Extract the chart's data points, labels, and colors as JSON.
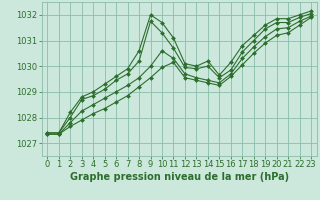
{
  "background_color": "#cce8dc",
  "grid_color": "#8bbcaa",
  "line_color": "#2d6e2d",
  "marker_color": "#2d6e2d",
  "xlabel": "Graphe pression niveau de la mer (hPa)",
  "xlabel_fontsize": 7,
  "tick_fontsize": 6,
  "ylim": [
    1026.5,
    1032.5
  ],
  "xlim": [
    -0.5,
    23.5
  ],
  "yticks": [
    1027,
    1028,
    1029,
    1030,
    1031,
    1032
  ],
  "xticks": [
    0,
    1,
    2,
    3,
    4,
    5,
    6,
    7,
    8,
    9,
    10,
    11,
    12,
    13,
    14,
    15,
    16,
    17,
    18,
    19,
    20,
    21,
    22,
    23
  ],
  "series": [
    [
      1027.4,
      1027.4,
      1028.2,
      1028.8,
      1029.0,
      1029.3,
      1029.6,
      1029.9,
      1030.6,
      1032.0,
      1031.7,
      1031.1,
      1030.1,
      1030.0,
      1030.2,
      1029.65,
      1030.15,
      1030.8,
      1031.2,
      1031.6,
      1031.85,
      1031.85,
      1032.0,
      1032.15
    ],
    [
      1027.4,
      1027.4,
      1028.0,
      1028.7,
      1028.85,
      1029.1,
      1029.45,
      1029.7,
      1030.2,
      1031.75,
      1031.3,
      1030.7,
      1029.95,
      1029.9,
      1030.0,
      1029.55,
      1029.85,
      1030.55,
      1031.0,
      1031.45,
      1031.7,
      1031.7,
      1031.9,
      1032.05
    ],
    [
      1027.35,
      1027.35,
      1027.8,
      1028.25,
      1028.5,
      1028.75,
      1029.0,
      1029.25,
      1029.55,
      1030.0,
      1030.6,
      1030.3,
      1029.7,
      1029.55,
      1029.45,
      1029.35,
      1029.7,
      1030.3,
      1030.75,
      1031.15,
      1031.45,
      1031.5,
      1031.75,
      1031.95
    ],
    [
      1027.35,
      1027.35,
      1027.65,
      1027.9,
      1028.15,
      1028.35,
      1028.6,
      1028.85,
      1029.2,
      1029.55,
      1029.95,
      1030.15,
      1029.55,
      1029.45,
      1029.35,
      1029.25,
      1029.6,
      1030.05,
      1030.5,
      1030.9,
      1031.2,
      1031.3,
      1031.6,
      1031.9
    ]
  ]
}
